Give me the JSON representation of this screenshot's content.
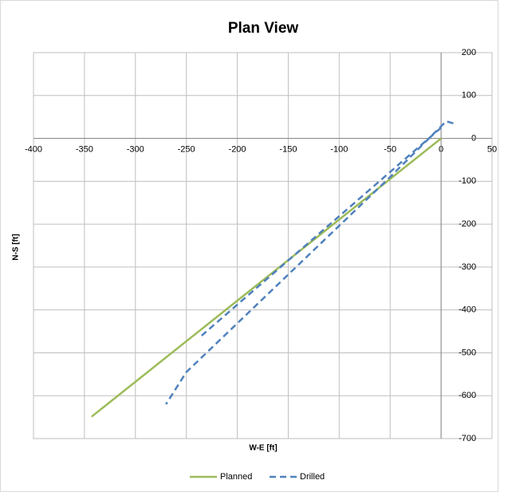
{
  "chart_data": {
    "type": "line",
    "title": "Plan View",
    "xlabel": "W-E [ft]",
    "ylabel": "N-S [ft]",
    "xlim": [
      -400,
      50
    ],
    "ylim": [
      -700,
      200
    ],
    "xticks": [
      -400,
      -350,
      -300,
      -250,
      -200,
      -150,
      -100,
      -50,
      0,
      50
    ],
    "yticks": [
      200,
      100,
      0,
      -100,
      -200,
      -300,
      -400,
      -500,
      -600,
      -700
    ],
    "grid": true,
    "legend": "bottom",
    "series": [
      {
        "name": "Planned",
        "color": "#9bbb59",
        "dash": false,
        "x": [
          0,
          -343
        ],
        "values": [
          0,
          -649
        ]
      },
      {
        "name": "Drilled",
        "color": "#4f81bd",
        "dash": true,
        "x": [
          12,
          5,
          -50,
          -250,
          -270,
          null,
          0,
          -235
        ],
        "values": [
          35,
          40,
          -90,
          -545,
          -620,
          null,
          25,
          -460
        ]
      }
    ]
  }
}
